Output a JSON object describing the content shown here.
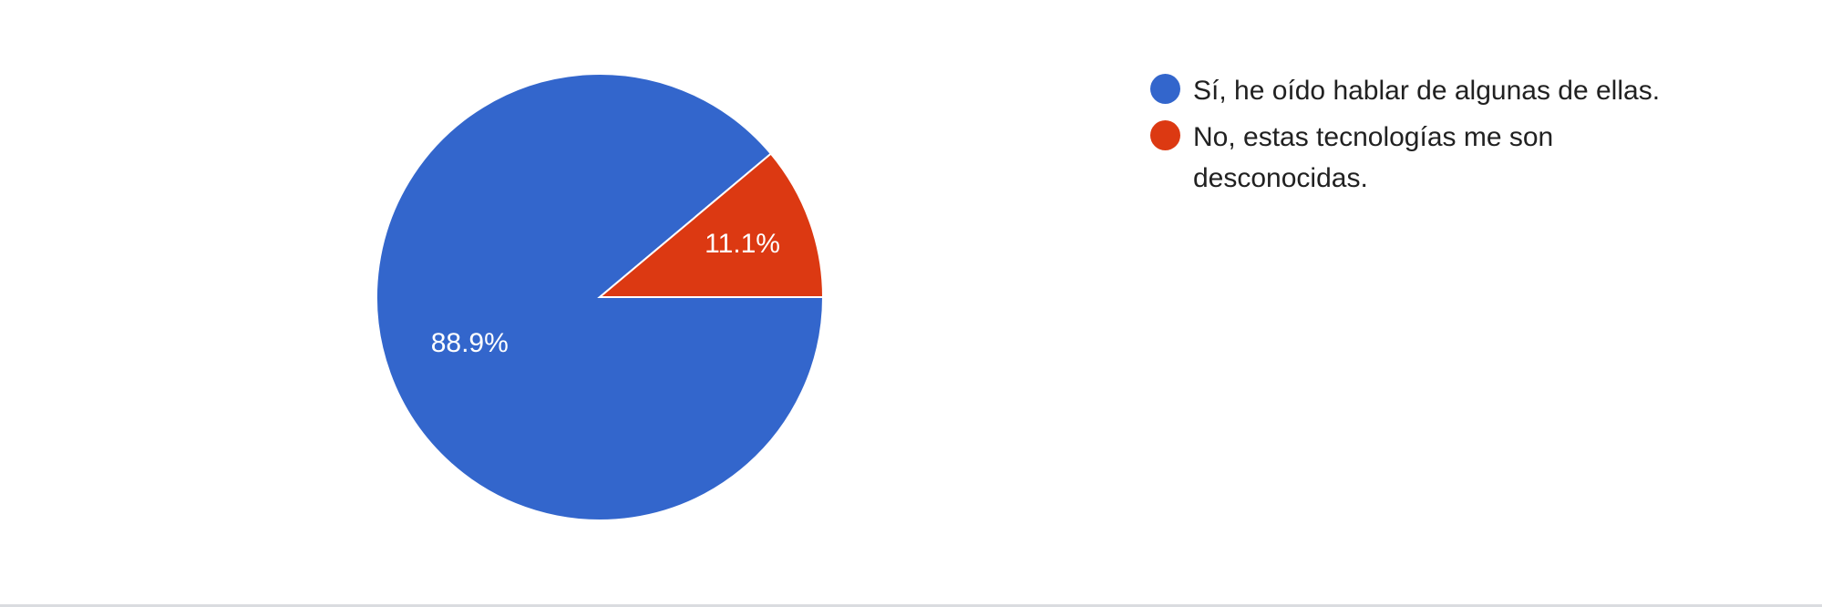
{
  "chart_data": {
    "type": "pie",
    "categories": [
      "Sí, he oído hablar de algunas de ellas.",
      "No, estas tecnologías me son desconocidas."
    ],
    "values": [
      88.9,
      11.1
    ],
    "slice_labels": [
      "88.9%",
      "11.1%"
    ],
    "colors": [
      "#3366cc",
      "#dc3912"
    ],
    "legend_position": "right"
  },
  "legend": {
    "items": [
      {
        "label": "Sí, he oído hablar de algunas de ellas.",
        "color": "#3366cc"
      },
      {
        "label": "No, estas tecnologías me son desconocidas.",
        "color": "#dc3912"
      }
    ]
  }
}
